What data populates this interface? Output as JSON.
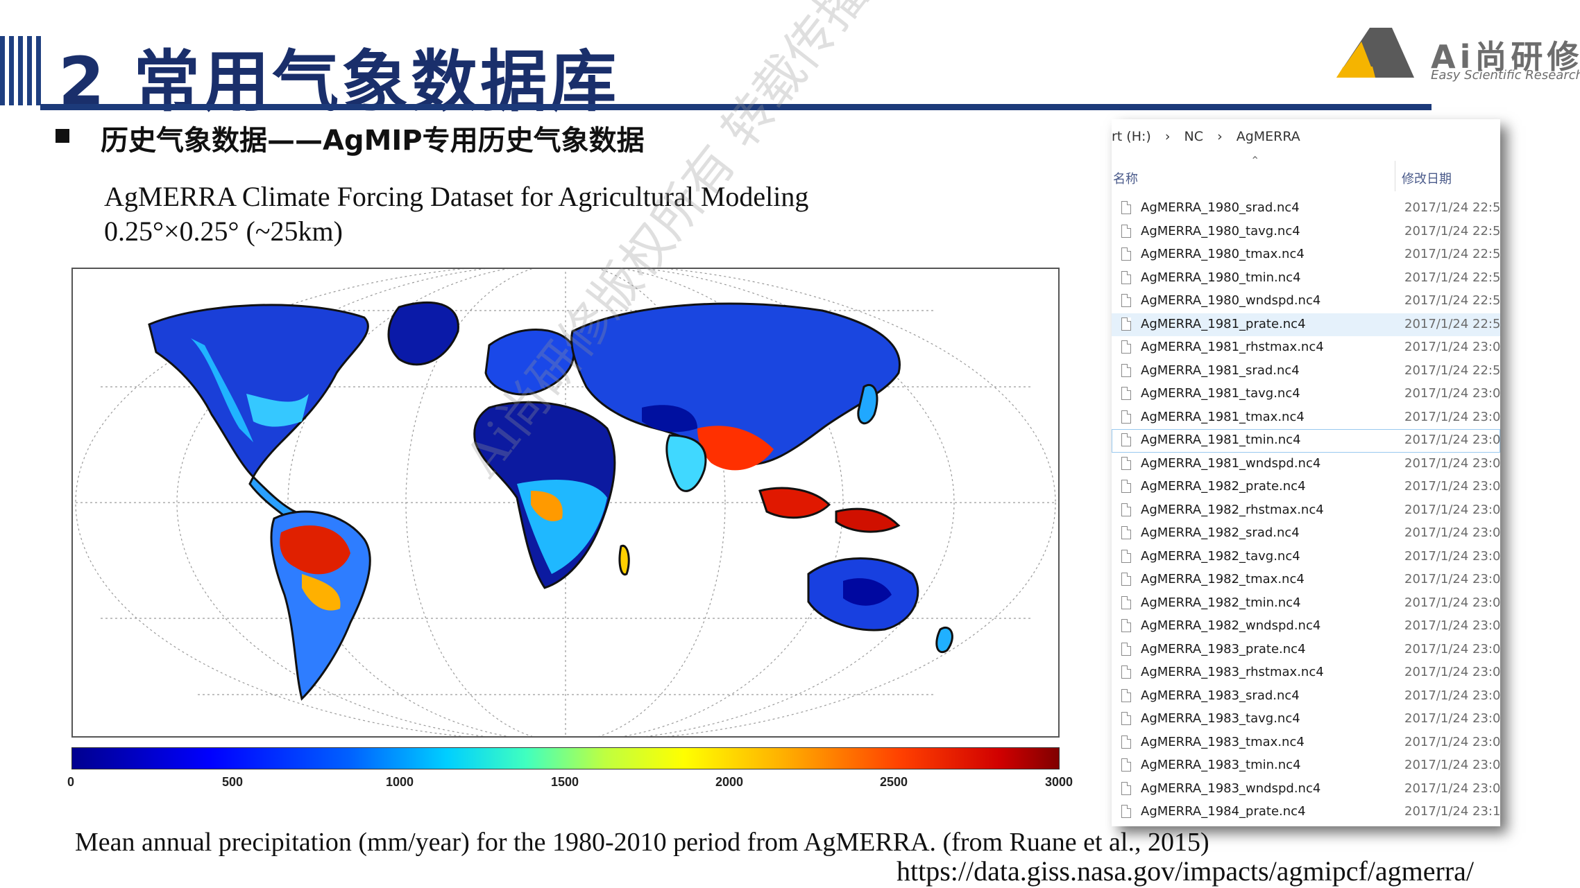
{
  "header": {
    "title": "2 常用气象数据库",
    "logo_text": "Ai尚研修",
    "logo_subtitle": "Easy Scientific Research"
  },
  "section": {
    "heading": "历史气象数据——AgMIP专用历史气象数据",
    "dataset_name": "AgMERRA Climate Forcing Dataset for Agricultural Modeling",
    "resolution": "0.25°×0.25° (~25km)"
  },
  "map": {
    "colorbar_ticks": [
      "0",
      "500",
      "1000",
      "1500",
      "2000",
      "2500",
      "3000"
    ],
    "colorbar_colors": [
      "#00008f",
      "#0000ff",
      "#00cfff",
      "#bfff40",
      "#ffff00",
      "#ff4000",
      "#800000"
    ],
    "caption": "Mean annual precipitation (mm/year) for the 1980-2010 period from AgMERRA. (from Ruane et al., 2015)",
    "url": "https://data.giss.nasa.gov/impacts/agmipcf/agmerra/"
  },
  "explorer": {
    "breadcrumb": [
      "rt (H:)",
      "›",
      "NC",
      "›",
      "AgMERRA"
    ],
    "col_name": "名称",
    "col_date": "修改日期",
    "files": [
      {
        "name": "AgMERRA_1980_srad.nc4",
        "date": "2017/1/24 22:5"
      },
      {
        "name": "AgMERRA_1980_tavg.nc4",
        "date": "2017/1/24 22:5"
      },
      {
        "name": "AgMERRA_1980_tmax.nc4",
        "date": "2017/1/24 22:5"
      },
      {
        "name": "AgMERRA_1980_tmin.nc4",
        "date": "2017/1/24 22:5"
      },
      {
        "name": "AgMERRA_1980_wndspd.nc4",
        "date": "2017/1/24 22:5"
      },
      {
        "name": "AgMERRA_1981_prate.nc4",
        "date": "2017/1/24 22:5"
      },
      {
        "name": "AgMERRA_1981_rhstmax.nc4",
        "date": "2017/1/24 23:0"
      },
      {
        "name": "AgMERRA_1981_srad.nc4",
        "date": "2017/1/24 22:5"
      },
      {
        "name": "AgMERRA_1981_tavg.nc4",
        "date": "2017/1/24 23:0"
      },
      {
        "name": "AgMERRA_1981_tmax.nc4",
        "date": "2017/1/24 23:0"
      },
      {
        "name": "AgMERRA_1981_tmin.nc4",
        "date": "2017/1/24 23:0"
      },
      {
        "name": "AgMERRA_1981_wndspd.nc4",
        "date": "2017/1/24 23:0"
      },
      {
        "name": "AgMERRA_1982_prate.nc4",
        "date": "2017/1/24 23:0"
      },
      {
        "name": "AgMERRA_1982_rhstmax.nc4",
        "date": "2017/1/24 23:0"
      },
      {
        "name": "AgMERRA_1982_srad.nc4",
        "date": "2017/1/24 23:0"
      },
      {
        "name": "AgMERRA_1982_tavg.nc4",
        "date": "2017/1/24 23:0"
      },
      {
        "name": "AgMERRA_1982_tmax.nc4",
        "date": "2017/1/24 23:0"
      },
      {
        "name": "AgMERRA_1982_tmin.nc4",
        "date": "2017/1/24 23:0"
      },
      {
        "name": "AgMERRA_1982_wndspd.nc4",
        "date": "2017/1/24 23:0"
      },
      {
        "name": "AgMERRA_1983_prate.nc4",
        "date": "2017/1/24 23:0"
      },
      {
        "name": "AgMERRA_1983_rhstmax.nc4",
        "date": "2017/1/24 23:0"
      },
      {
        "name": "AgMERRA_1983_srad.nc4",
        "date": "2017/1/24 23:0"
      },
      {
        "name": "AgMERRA_1983_tavg.nc4",
        "date": "2017/1/24 23:0"
      },
      {
        "name": "AgMERRA_1983_tmax.nc4",
        "date": "2017/1/24 23:0"
      },
      {
        "name": "AgMERRA_1983_tmin.nc4",
        "date": "2017/1/24 23:0"
      },
      {
        "name": "AgMERRA_1983_wndspd.nc4",
        "date": "2017/1/24 23:0"
      },
      {
        "name": "AgMERRA_1984_prate.nc4",
        "date": "2017/1/24 23:1"
      }
    ],
    "selected_file": "AgMERRA_1981_prate.nc4",
    "focused_file": "AgMERRA_1981_tmin.nc4"
  },
  "watermark": "Ai尚研修版权所有 转载传播"
}
